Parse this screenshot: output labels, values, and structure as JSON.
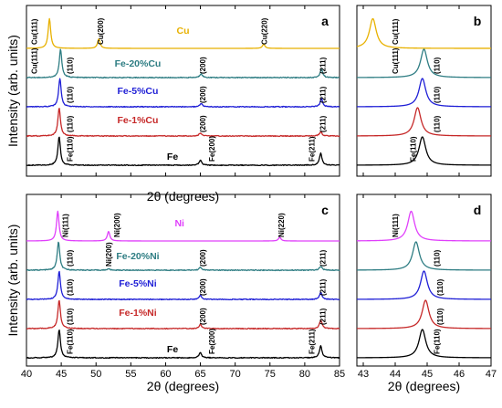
{
  "chart_data": [
    {
      "panel": "a",
      "type": "line",
      "xlabel": "2θ (degrees)",
      "ylabel": "Intensity (arb. units)",
      "xlim": [
        40,
        85
      ],
      "xticks": [
        40,
        45,
        50,
        55,
        60,
        65,
        70,
        75,
        80,
        85
      ],
      "show_xtick_labels": false,
      "series": [
        {
          "name": "Cu",
          "color": "#e8b100",
          "peaks": [
            [
              43.3,
              1.0
            ],
            [
              50.4,
              0.32
            ],
            [
              74.1,
              0.14
            ]
          ],
          "peak_labels": [
            {
              "x": 41.1,
              "text": "Cu(111)"
            },
            {
              "x": 50.6,
              "text": "Cu(200)"
            },
            {
              "x": 74.2,
              "text": "Cu(220)"
            }
          ]
        },
        {
          "name": "Fe-20%Cu",
          "color": "#2e7d83",
          "peaks": [
            [
              44.9,
              1.0
            ],
            [
              65.1,
              0.14
            ],
            [
              82.4,
              0.3
            ]
          ],
          "peak_labels": [
            {
              "x": 41.1,
              "text": "Cu(111)"
            },
            {
              "x": 46.2,
              "text": "(110)"
            },
            {
              "x": 65.3,
              "text": "(200)"
            },
            {
              "x": 82.6,
              "text": "(211)"
            }
          ]
        },
        {
          "name": "Fe-5%Cu",
          "color": "#1f1fd6",
          "peaks": [
            [
              44.8,
              1.0
            ],
            [
              65.1,
              0.12
            ],
            [
              82.4,
              0.28
            ]
          ],
          "peak_labels": [
            {
              "x": 46.2,
              "text": "(110)"
            },
            {
              "x": 65.3,
              "text": "(200)"
            },
            {
              "x": 82.6,
              "text": "(211)"
            }
          ]
        },
        {
          "name": "Fe-1%Cu",
          "color": "#c62828",
          "peaks": [
            [
              44.7,
              1.0
            ],
            [
              65.0,
              0.11
            ],
            [
              82.3,
              0.15
            ]
          ],
          "peak_labels": [
            {
              "x": 46.2,
              "text": "(110)"
            },
            {
              "x": 65.3,
              "text": "(200)"
            },
            {
              "x": 82.6,
              "text": "(211)"
            }
          ]
        },
        {
          "name": "Fe",
          "color": "#000000",
          "peaks": [
            [
              44.7,
              1.0
            ],
            [
              65.0,
              0.18
            ],
            [
              82.3,
              0.42
            ]
          ],
          "peak_labels": [
            {
              "x": 46.2,
              "text": "Fe(110)"
            },
            {
              "x": 66.6,
              "text": "Fe(200)"
            },
            {
              "x": 81.0,
              "text": "Fe(211)"
            }
          ]
        }
      ]
    },
    {
      "panel": "b",
      "type": "line",
      "xlim": [
        42.8,
        47
      ],
      "xticks": [
        43,
        44,
        45,
        46,
        47
      ],
      "show_xtick_labels": false,
      "series": [
        {
          "color": "#e8b100",
          "peaks": [
            [
              43.3,
              1.0
            ]
          ],
          "peak_labels": [
            {
              "x": 44.0,
              "text": "Cu(111)"
            }
          ]
        },
        {
          "color": "#2e7d83",
          "peaks": [
            [
              44.9,
              1.0
            ]
          ],
          "peak_labels": [
            {
              "x": 44.0,
              "text": "Cu(111)"
            },
            {
              "x": 45.3,
              "text": "(110)"
            }
          ]
        },
        {
          "color": "#1f1fd6",
          "peaks": [
            [
              44.85,
              1.0
            ]
          ],
          "peak_labels": [
            {
              "x": 45.3,
              "text": "(110)"
            }
          ]
        },
        {
          "color": "#c62828",
          "peaks": [
            [
              44.7,
              1.0
            ]
          ],
          "peak_labels": [
            {
              "x": 45.3,
              "text": "(110)"
            }
          ]
        },
        {
          "color": "#000000",
          "peaks": [
            [
              44.85,
              1.0
            ]
          ],
          "peak_labels": [
            {
              "x": 44.55,
              "text": "Fe(110)"
            }
          ]
        }
      ]
    },
    {
      "panel": "c",
      "type": "line",
      "xlabel": "2θ (degrees)",
      "ylabel": "Intensity (arb. units)",
      "xlim": [
        40,
        85
      ],
      "xticks": [
        40,
        45,
        50,
        55,
        60,
        65,
        70,
        75,
        80,
        85
      ],
      "show_xtick_labels": true,
      "series": [
        {
          "name": "Ni",
          "color": "#e040fb",
          "peaks": [
            [
              44.5,
              1.0
            ],
            [
              51.8,
              0.32
            ],
            [
              76.4,
              0.12
            ]
          ],
          "peak_labels": [
            {
              "x": 45.6,
              "text": "Ni(111)"
            },
            {
              "x": 53.0,
              "text": "Ni(200)"
            },
            {
              "x": 76.6,
              "text": "Ni(220)"
            }
          ]
        },
        {
          "name": "Fe-20%Ni",
          "color": "#2e7d83",
          "peaks": [
            [
              44.6,
              1.0
            ],
            [
              51.8,
              0.05
            ],
            [
              65.0,
              0.1
            ],
            [
              82.3,
              0.14
            ]
          ],
          "peak_labels": [
            {
              "x": 46.2,
              "text": "(110)"
            },
            {
              "x": 51.8,
              "text": "Ni(200)"
            },
            {
              "x": 65.3,
              "text": "(200)"
            },
            {
              "x": 82.6,
              "text": "(211)"
            }
          ]
        },
        {
          "name": "Fe-5%Ni",
          "color": "#1f1fd6",
          "peaks": [
            [
              44.7,
              1.0
            ],
            [
              65.0,
              0.14
            ],
            [
              82.3,
              0.24
            ]
          ],
          "peak_labels": [
            {
              "x": 46.2,
              "text": "(110)"
            },
            {
              "x": 65.3,
              "text": "(200)"
            },
            {
              "x": 82.6,
              "text": "(211)"
            }
          ]
        },
        {
          "name": "Fe-1%Ni",
          "color": "#c62828",
          "peaks": [
            [
              44.7,
              1.0
            ],
            [
              65.0,
              0.15
            ],
            [
              82.3,
              0.3
            ]
          ],
          "peak_labels": [
            {
              "x": 46.2,
              "text": "(110)"
            },
            {
              "x": 65.3,
              "text": "(200)"
            },
            {
              "x": 82.6,
              "text": "(211)"
            }
          ]
        },
        {
          "name": "Fe",
          "color": "#000000",
          "peaks": [
            [
              44.7,
              1.0
            ],
            [
              65.0,
              0.18
            ],
            [
              82.3,
              0.42
            ]
          ],
          "peak_labels": [
            {
              "x": 46.2,
              "text": "Fe(110)"
            },
            {
              "x": 66.6,
              "text": "Fe(200)"
            },
            {
              "x": 81.0,
              "text": "Fe(211)"
            }
          ]
        }
      ]
    },
    {
      "panel": "d",
      "type": "line",
      "xlabel": "2θ (degrees)",
      "xlim": [
        42.8,
        47
      ],
      "xticks": [
        43,
        44,
        45,
        46,
        47
      ],
      "show_xtick_labels": true,
      "series": [
        {
          "color": "#e040fb",
          "peaks": [
            [
              44.5,
              1.0
            ]
          ],
          "peak_labels": [
            {
              "x": 44.0,
              "text": "Ni(111)"
            }
          ]
        },
        {
          "color": "#2e7d83",
          "peaks": [
            [
              44.65,
              1.0
            ]
          ],
          "peak_labels": [
            {
              "x": 45.3,
              "text": "(110)"
            }
          ]
        },
        {
          "color": "#1f1fd6",
          "peaks": [
            [
              44.9,
              1.0
            ]
          ],
          "peak_labels": [
            {
              "x": 45.4,
              "text": "(110)"
            }
          ]
        },
        {
          "color": "#c62828",
          "peaks": [
            [
              44.95,
              1.0
            ]
          ],
          "peak_labels": [
            {
              "x": 45.4,
              "text": "(110)"
            }
          ]
        },
        {
          "color": "#000000",
          "peaks": [
            [
              44.85,
              1.0
            ]
          ],
          "peak_labels": [
            {
              "x": 45.3,
              "text": "Fe(110)"
            }
          ]
        }
      ]
    }
  ]
}
